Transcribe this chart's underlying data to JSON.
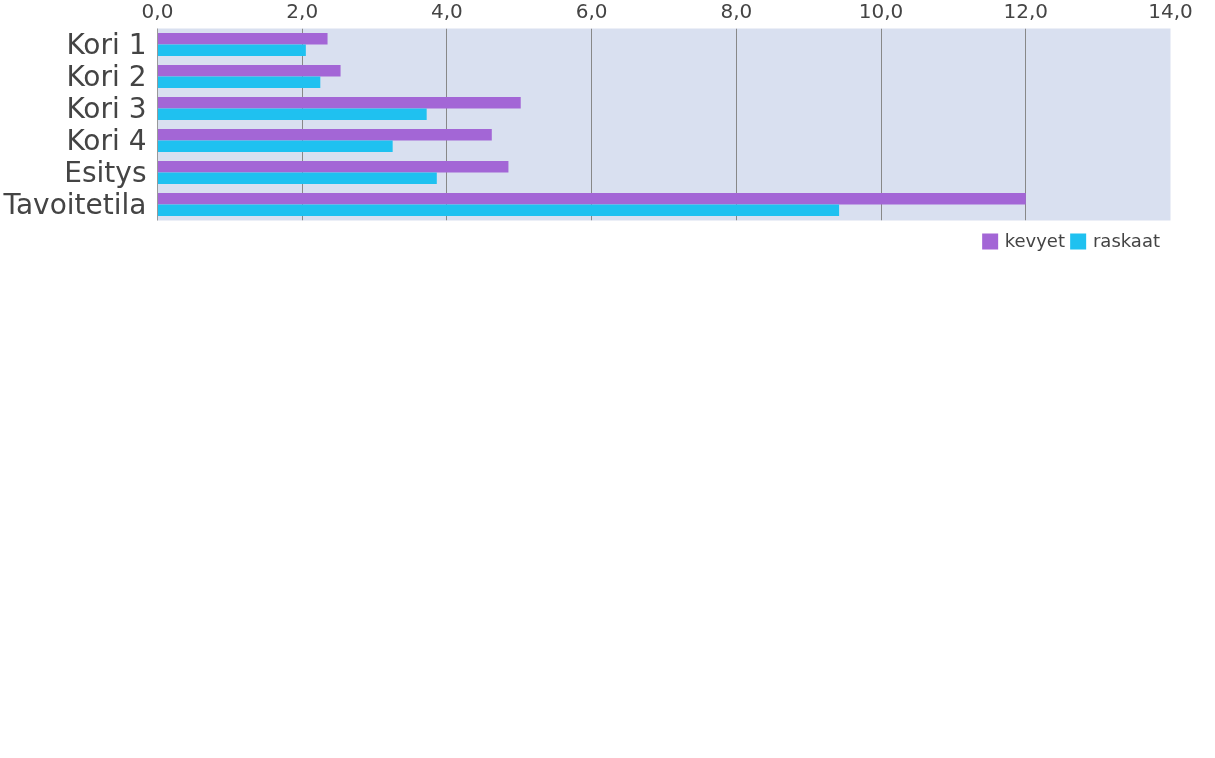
{
  "chart_data": {
    "type": "bar",
    "orientation": "horizontal",
    "categories": [
      "Kori 1",
      "Kori 2",
      "Kori 3",
      "Kori 4",
      "Esitys",
      "Tavoitetila"
    ],
    "series": [
      {
        "name": "kevyet",
        "color": "#a366d6",
        "values": [
          2.35,
          2.53,
          5.02,
          4.62,
          4.85,
          12.0
        ]
      },
      {
        "name": "raskaat",
        "color": "#1fc1f0",
        "values": [
          2.05,
          2.25,
          3.72,
          3.25,
          3.86,
          9.42
        ]
      }
    ],
    "xlim": [
      0,
      14
    ],
    "xticks": [
      {
        "value": 0,
        "label": "0,0"
      },
      {
        "value": 2,
        "label": "2,0"
      },
      {
        "value": 4,
        "label": "4,0"
      },
      {
        "value": 6,
        "label": "6,0"
      },
      {
        "value": 8,
        "label": "8,0"
      },
      {
        "value": 10,
        "label": "10,0"
      },
      {
        "value": 12,
        "label": "12,0"
      },
      {
        "value": 14,
        "label": "14,0"
      }
    ],
    "grid": "x",
    "legend": "bottom"
  }
}
